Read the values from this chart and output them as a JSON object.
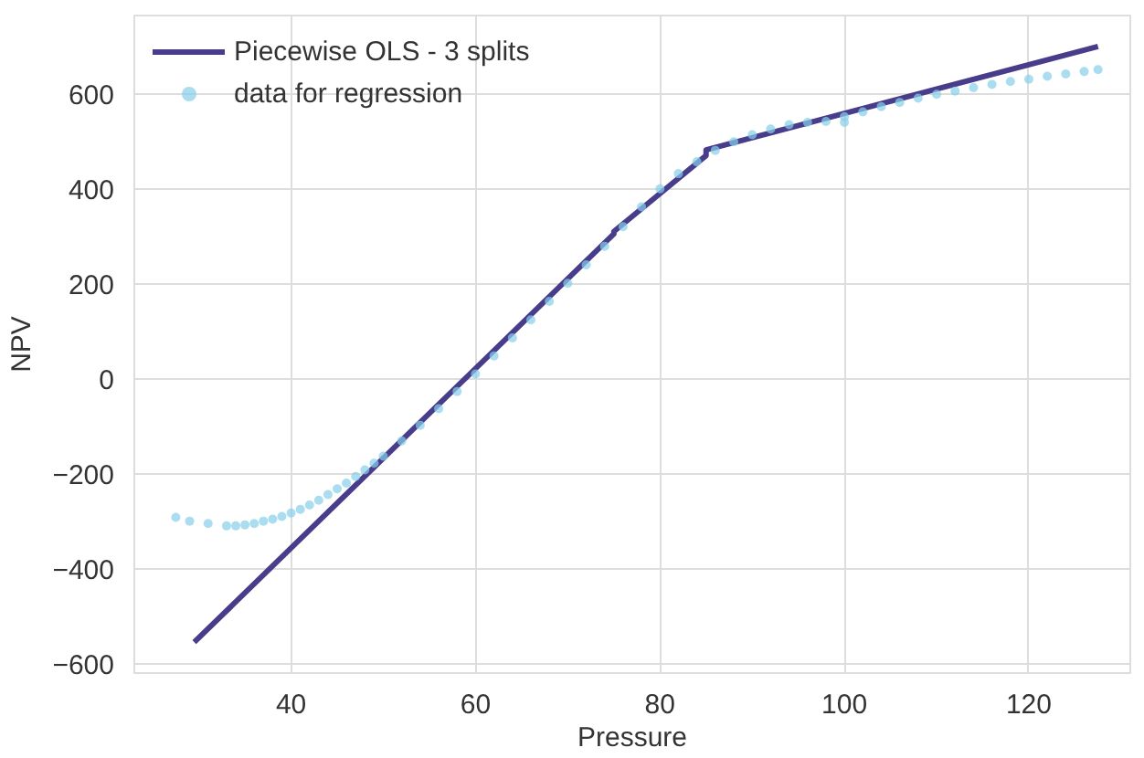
{
  "chart_data": {
    "type": "scatter",
    "xlabel": "Pressure",
    "ylabel": "NPV",
    "xlim": [
      23,
      131
    ],
    "ylim": [
      -620,
      765
    ],
    "xticks": [
      40,
      60,
      80,
      100,
      120
    ],
    "yticks": [
      -600,
      -400,
      -200,
      0,
      200,
      400,
      600
    ],
    "grid": true,
    "legend": "top left",
    "series": [
      {
        "name": "Piecewise OLS - 3 splits",
        "type": "line",
        "color": "#483d8b",
        "marker": "none",
        "x": [
          29.5,
          75,
          75,
          85,
          85,
          127.5
        ],
        "values": [
          -555,
          305,
          310,
          470,
          482,
          700
        ]
      },
      {
        "name": "data for regression",
        "color": "#87ceeb",
        "marker": "circle",
        "x": [
          27.5,
          29,
          31,
          33,
          34,
          35,
          36,
          37,
          38,
          39,
          40,
          41,
          42,
          43,
          44,
          45,
          46,
          47,
          48,
          49,
          50,
          52,
          54,
          56,
          58,
          60,
          62,
          64,
          66,
          68,
          70,
          72,
          74,
          76,
          78,
          80,
          82,
          84,
          86,
          88,
          90,
          92,
          94,
          96,
          98,
          100,
          100,
          102,
          104,
          106,
          108,
          110,
          112,
          114,
          116,
          118,
          120,
          122,
          124,
          126,
          127.5
        ],
        "values": [
          -292,
          -300,
          -305,
          -310,
          -310,
          -308,
          -305,
          -300,
          -296,
          -290,
          -283,
          -275,
          -266,
          -256,
          -244,
          -232,
          -220,
          -206,
          -192,
          -178,
          -163,
          -131,
          -98,
          -63,
          -27,
          10,
          48,
          86,
          124,
          163,
          201,
          240,
          279,
          320,
          362,
          400,
          432,
          457,
          481,
          499,
          514,
          526,
          535,
          540,
          542,
          540,
          552,
          562,
          573,
          582,
          591,
          599,
          606,
          613,
          620,
          626,
          631,
          637,
          642,
          647,
          651
        ]
      }
    ]
  }
}
